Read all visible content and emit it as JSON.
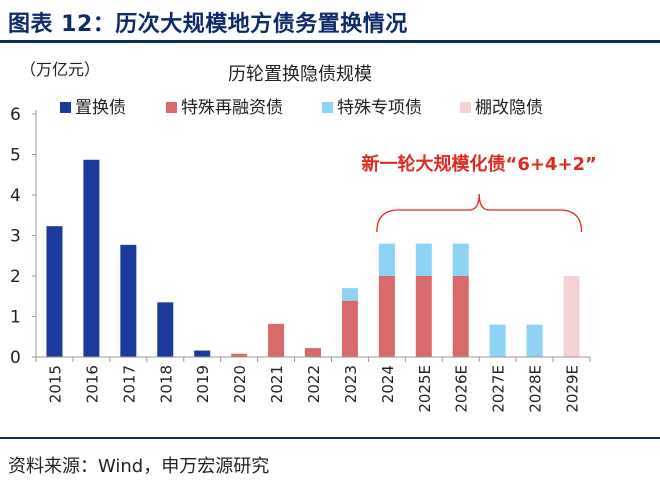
{
  "header": {
    "figure_title": "图表 12：历次大规模地方债务置换情况"
  },
  "footer": {
    "source": "资料来源：Wind，申万宏源研究"
  },
  "chart_data": {
    "type": "bar",
    "stacked": true,
    "title": "历轮置换隐债规模",
    "ylabel": "（万亿元）",
    "xlabel": "",
    "ylim": [
      0,
      6
    ],
    "yticks": [
      0,
      1,
      2,
      3,
      4,
      5,
      6
    ],
    "grid": false,
    "legend_position": "top",
    "categories": [
      "2015",
      "2016",
      "2017",
      "2018",
      "2019",
      "2020",
      "2021",
      "2022",
      "2023",
      "2024",
      "2025E",
      "2026E",
      "2027E",
      "2028E",
      "2029E"
    ],
    "series": [
      {
        "name": "置换债",
        "color": "#1a3a9c",
        "values": [
          3.23,
          4.87,
          2.77,
          1.35,
          0.16,
          0,
          0,
          0,
          0,
          0,
          0,
          0,
          0,
          0,
          0
        ]
      },
      {
        "name": "特殊再融资债",
        "color": "#d96a6a",
        "values": [
          0,
          0,
          0,
          0,
          0,
          0.08,
          0.82,
          0.22,
          1.39,
          2.0,
          2.0,
          2.0,
          0,
          0,
          0
        ]
      },
      {
        "name": "特殊专项债",
        "color": "#8cd3f5",
        "values": [
          0,
          0,
          0,
          0,
          0,
          0,
          0,
          0,
          0.31,
          0.8,
          0.8,
          0.8,
          0.8,
          0.8,
          0
        ]
      },
      {
        "name": "棚改隐债",
        "color": "#f6d1d3",
        "values": [
          0,
          0,
          0,
          0,
          0,
          0,
          0,
          0,
          0,
          0,
          0,
          0,
          0,
          0,
          2.0
        ]
      }
    ],
    "annotation": {
      "text": "新一轮大规模化债“6+4+2”",
      "color": "#e02a1f",
      "spans_categories": [
        "2024",
        "2029E"
      ]
    }
  }
}
